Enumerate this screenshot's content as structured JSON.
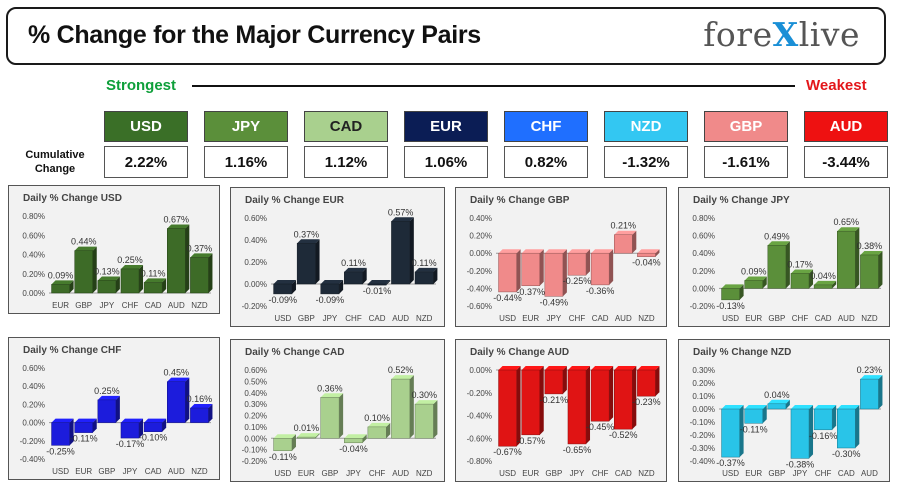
{
  "header": {
    "title": "% Change for the Major Currency Pairs",
    "logo_left": "fore",
    "logo_x": "X",
    "logo_right": "live"
  },
  "ranking": {
    "strongest_label": "Strongest",
    "weakest_label": "Weakest",
    "cumulative_label": "Cumulative Change",
    "currencies": [
      {
        "name": "USD",
        "value": "2.22%",
        "color": "#3a6f27"
      },
      {
        "name": "JPY",
        "value": "1.16%",
        "color": "#5b8f3a"
      },
      {
        "name": "CAD",
        "value": "1.12%",
        "color": "#a9d08e"
      },
      {
        "name": "EUR",
        "value": "1.06%",
        "color": "#0b1d55"
      },
      {
        "name": "CHF",
        "value": "0.82%",
        "color": "#1f6fff"
      },
      {
        "name": "NZD",
        "value": "-1.32%",
        "color": "#33c7f2"
      },
      {
        "name": "GBP",
        "value": "-1.61%",
        "color": "#f08a8a"
      },
      {
        "name": "AUD",
        "value": "-3.44%",
        "color": "#ee1111"
      }
    ]
  },
  "chart_data": [
    {
      "type": "bar",
      "title": "Daily % Change USD",
      "color": "#3d6b27",
      "categories": [
        "EUR",
        "GBP",
        "JPY",
        "CHF",
        "CAD",
        "AUD",
        "NZD"
      ],
      "values": [
        0.09,
        0.44,
        0.13,
        0.25,
        0.11,
        0.67,
        0.37
      ],
      "labels": [
        "0.09%",
        "0.44%",
        "0.13%",
        "0.25%",
        "0.11%",
        "0.67%",
        "0.37%"
      ],
      "ylim": [
        0,
        0.8
      ],
      "yticks": [
        "0.00%",
        "0.20%",
        "0.40%",
        "0.60%",
        "0.80%"
      ]
    },
    {
      "type": "bar",
      "title": "Daily % Change EUR",
      "color": "#1e2a38",
      "categories": [
        "USD",
        "GBP",
        "JPY",
        "CHF",
        "CAD",
        "AUD",
        "NZD"
      ],
      "values": [
        -0.09,
        0.37,
        -0.09,
        0.11,
        -0.01,
        0.57,
        0.11
      ],
      "labels": [
        "-0.09%",
        "0.37%",
        "-0.09%",
        "0.11%",
        "-0.01%",
        "0.57%",
        "0.11%"
      ],
      "ylim": [
        -0.2,
        0.6
      ],
      "yticks": [
        "-0.20%",
        "0.00%",
        "0.20%",
        "0.40%",
        "0.60%"
      ]
    },
    {
      "type": "bar",
      "title": "Daily % Change GBP",
      "color": "#f08a8a",
      "categories": [
        "USD",
        "EUR",
        "JPY",
        "CHF",
        "CAD",
        "AUD",
        "NZD"
      ],
      "values": [
        -0.44,
        -0.37,
        -0.49,
        -0.25,
        -0.36,
        0.21,
        -0.04
      ],
      "labels": [
        "-0.44%",
        "-0.37%",
        "-0.49%",
        "-0.25%",
        "-0.36%",
        "0.21%",
        "-0.04%"
      ],
      "ylim": [
        -0.6,
        0.4
      ],
      "yticks": [
        "-0.60%",
        "-0.40%",
        "-0.20%",
        "0.00%",
        "0.20%",
        "0.40%"
      ]
    },
    {
      "type": "bar",
      "title": "Daily % Change JPY",
      "color": "#5b8f3a",
      "categories": [
        "USD",
        "EUR",
        "GBP",
        "CHF",
        "CAD",
        "AUD",
        "NZD"
      ],
      "values": [
        -0.13,
        0.09,
        0.49,
        0.17,
        0.04,
        0.65,
        0.38
      ],
      "labels": [
        "-0.13%",
        "0.09%",
        "0.49%",
        "0.17%",
        "0.04%",
        "0.65%",
        "0.38%"
      ],
      "ylim": [
        -0.2,
        0.8
      ],
      "yticks": [
        "-0.20%",
        "0.00%",
        "0.20%",
        "0.40%",
        "0.60%",
        "0.80%"
      ]
    },
    {
      "type": "bar",
      "title": "Daily % Change CHF",
      "color": "#1c1cdc",
      "categories": [
        "USD",
        "EUR",
        "GBP",
        "JPY",
        "CAD",
        "AUD",
        "NZD"
      ],
      "values": [
        -0.25,
        -0.11,
        0.25,
        -0.17,
        -0.1,
        0.45,
        0.16
      ],
      "labels": [
        "-0.25%",
        "-0.11%",
        "0.25%",
        "-0.17%",
        "-0.10%",
        "0.45%",
        "0.16%"
      ],
      "ylim": [
        -0.4,
        0.6
      ],
      "yticks": [
        "-0.40%",
        "-0.20%",
        "0.00%",
        "0.20%",
        "0.40%",
        "0.60%"
      ]
    },
    {
      "type": "bar",
      "title": "Daily % Change CAD",
      "color": "#a9d08e",
      "categories": [
        "USD",
        "EUR",
        "GBP",
        "JPY",
        "CHF",
        "AUD",
        "NZD"
      ],
      "values": [
        -0.11,
        0.01,
        0.36,
        -0.04,
        0.1,
        0.52,
        0.3
      ],
      "labels": [
        "-0.11%",
        "0.01%",
        "0.36%",
        "-0.04%",
        "0.10%",
        "0.52%",
        "0.30%"
      ],
      "ylim": [
        -0.2,
        0.6
      ],
      "yticks": [
        "-0.20%",
        "-0.10%",
        "0.00%",
        "0.10%",
        "0.20%",
        "0.30%",
        "0.40%",
        "0.50%",
        "0.60%"
      ]
    },
    {
      "type": "bar",
      "title": "Daily % Change AUD",
      "color": "#e01414",
      "categories": [
        "USD",
        "EUR",
        "GBP",
        "JPY",
        "CHF",
        "CAD",
        "NZD"
      ],
      "values": [
        -0.67,
        -0.57,
        -0.21,
        -0.65,
        -0.45,
        -0.52,
        -0.23
      ],
      "labels": [
        "-0.67%",
        "-0.57%",
        "-0.21%",
        "-0.65%",
        "-0.45%",
        "-0.52%",
        "-0.23%"
      ],
      "ylim": [
        -0.8,
        0
      ],
      "yticks": [
        "-0.80%",
        "-0.60%",
        "-0.40%",
        "-0.20%",
        "0.00%"
      ]
    },
    {
      "type": "bar",
      "title": "Daily % Change NZD",
      "color": "#29c4e8",
      "categories": [
        "USD",
        "EUR",
        "GBP",
        "JPY",
        "CHF",
        "CAD",
        "AUD"
      ],
      "values": [
        -0.37,
        -0.11,
        0.04,
        -0.38,
        -0.16,
        -0.3,
        0.23
      ],
      "labels": [
        "-0.37%",
        "-0.11%",
        "0.04%",
        "-0.38%",
        "-0.16%",
        "-0.30%",
        "0.23%"
      ],
      "ylim": [
        -0.4,
        0.3
      ],
      "yticks": [
        "-0.40%",
        "-0.30%",
        "-0.20%",
        "-0.10%",
        "0.00%",
        "0.10%",
        "0.20%",
        "0.30%"
      ]
    }
  ]
}
